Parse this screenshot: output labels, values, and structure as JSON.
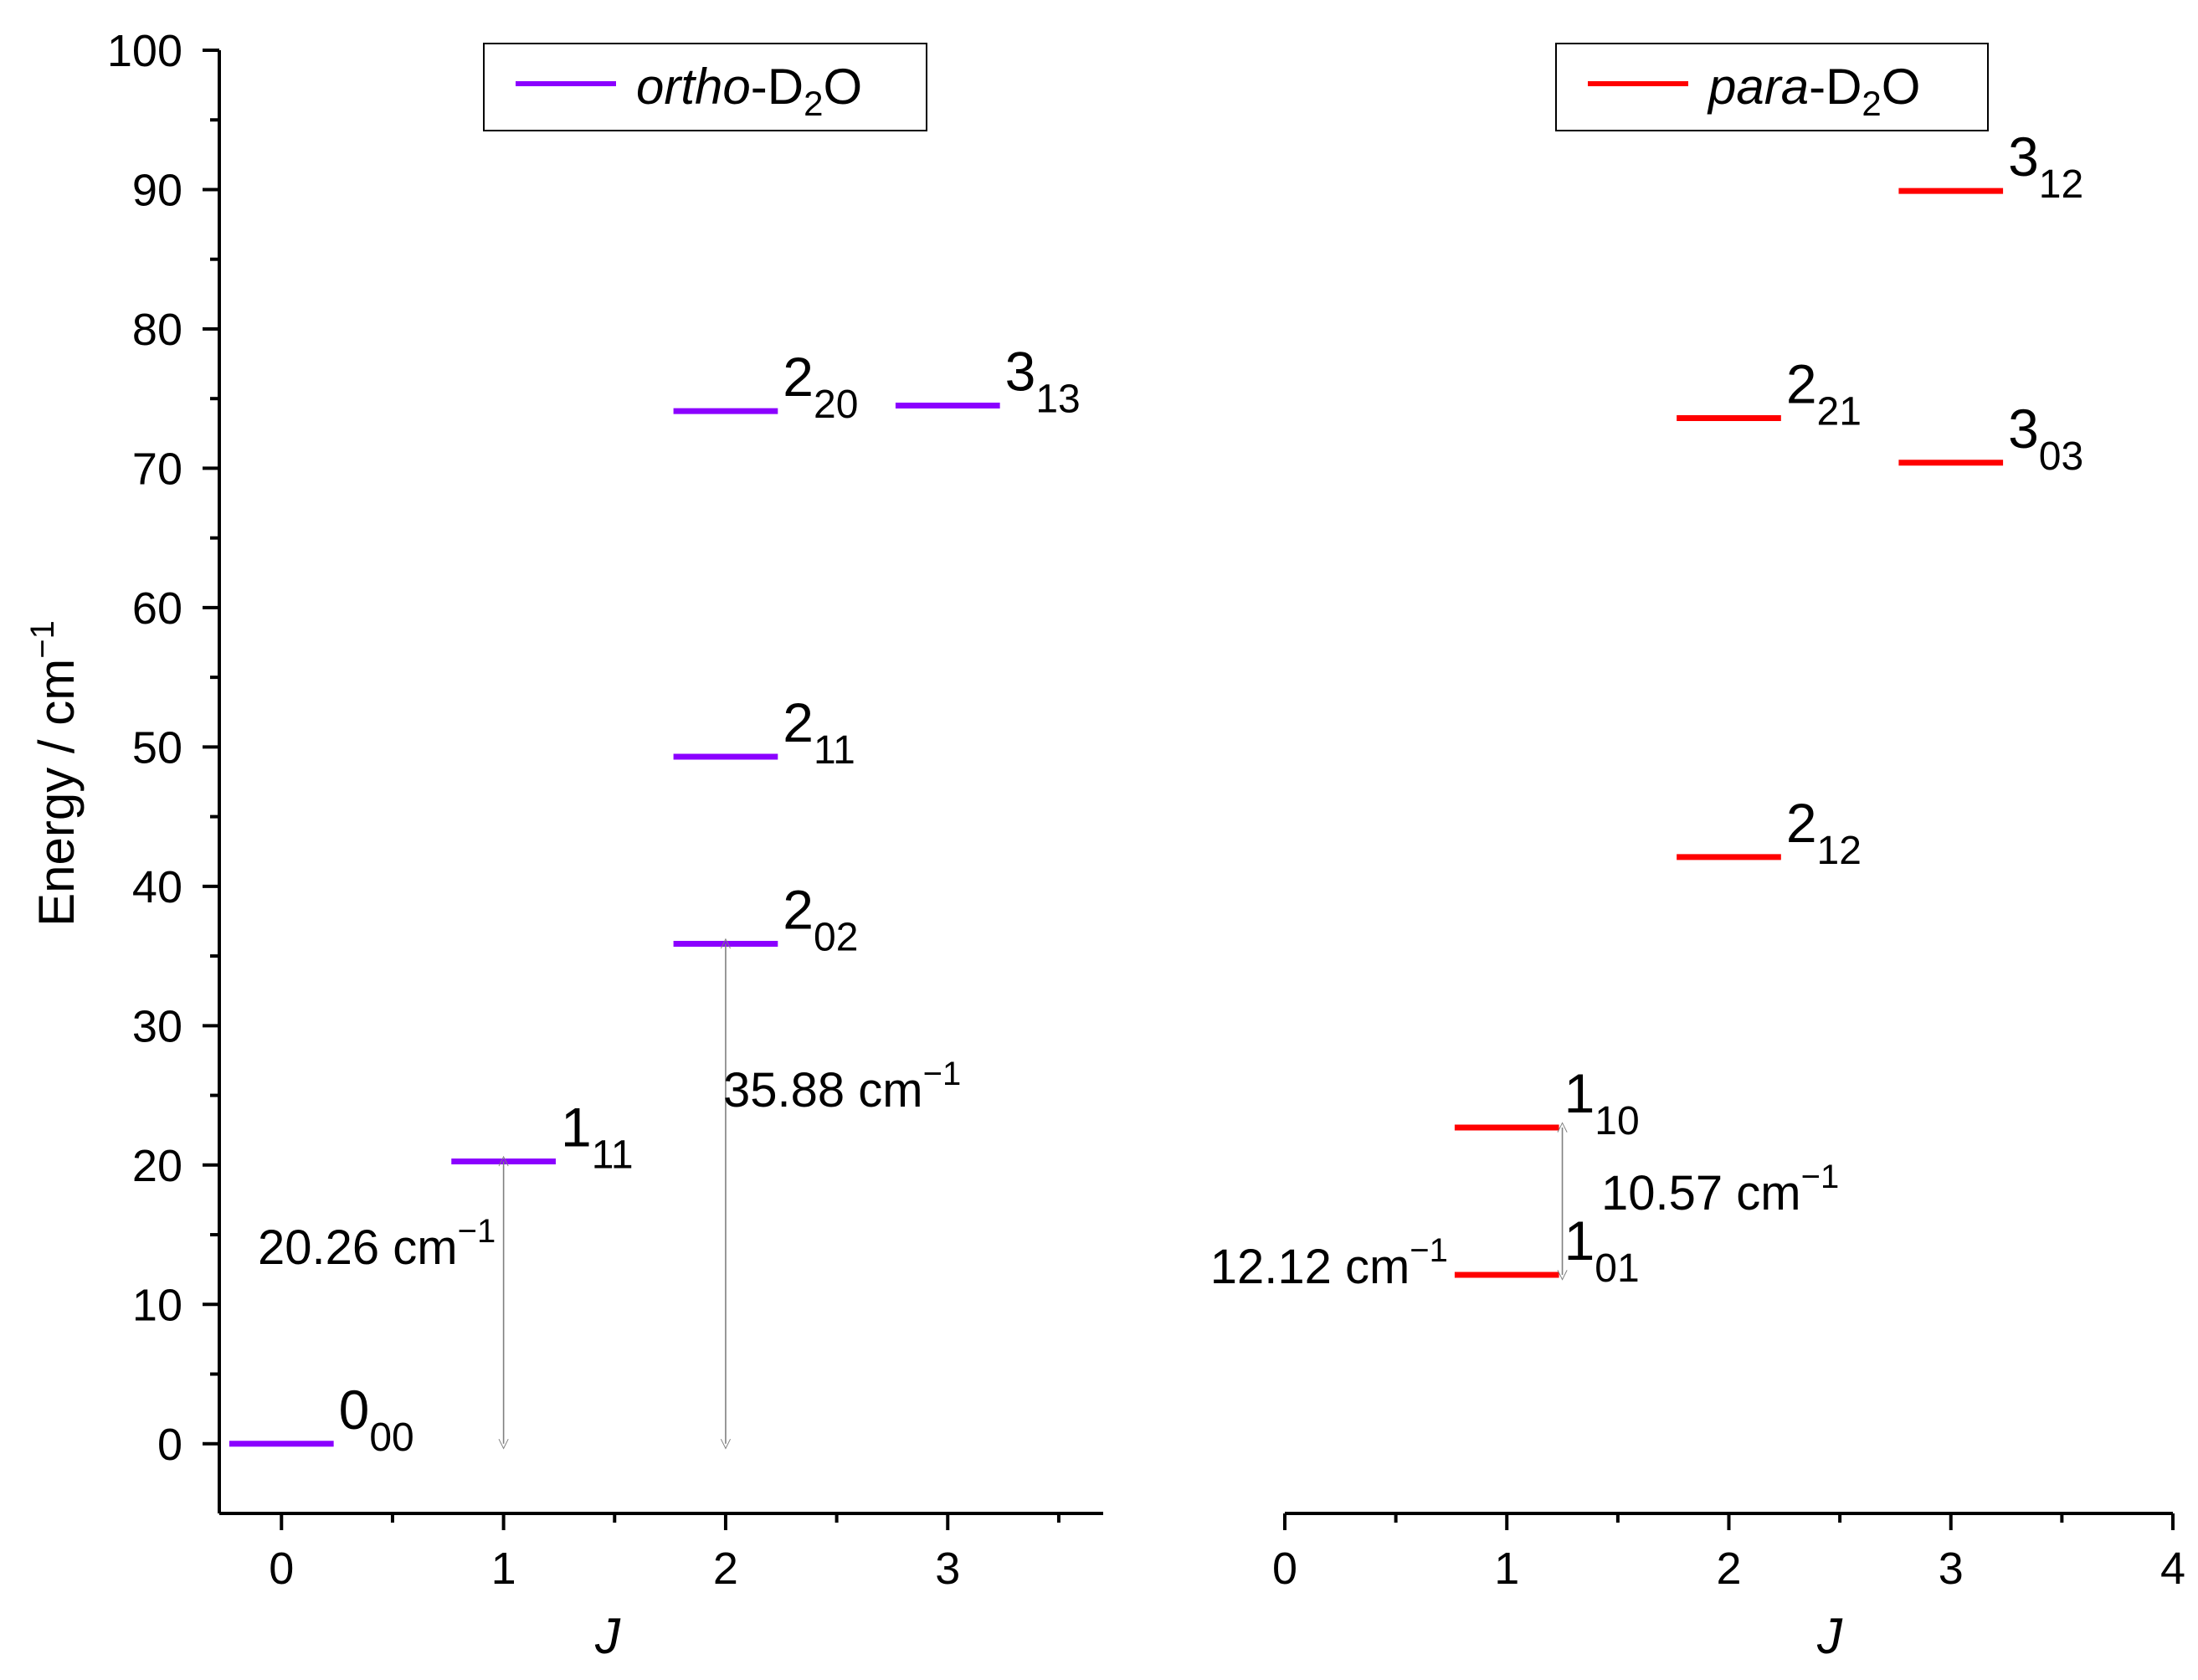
{
  "chart_data": {
    "type": "energy-level-diagram",
    "ylabel": "Energy / cm",
    "ylabel_sup": "−1",
    "ylim": [
      -5,
      100
    ],
    "yticks": [
      "0",
      "10",
      "20",
      "30",
      "40",
      "50",
      "60",
      "70",
      "80",
      "90",
      "100"
    ],
    "panels": [
      {
        "name": "ortho",
        "xlabel": "J",
        "xlim": [
          -0.28,
          3.7
        ],
        "xticks": [
          "0",
          "1",
          "2",
          "3"
        ],
        "legend": {
          "prefix": "ortho",
          "species": "-D",
          "sub": "2",
          "suffix": "O",
          "color": "#8B00FF"
        },
        "color": "#8B00FF",
        "levels": [
          {
            "j": 0,
            "energy": 0.0,
            "label": "0",
            "sub": "00"
          },
          {
            "j": 1,
            "energy": 20.26,
            "label": "1",
            "sub": "11"
          },
          {
            "j": 2,
            "energy": 35.88,
            "label": "2",
            "sub": "02"
          },
          {
            "j": 2,
            "energy": 49.3,
            "label": "2",
            "sub": "11"
          },
          {
            "j": 2,
            "energy": 74.1,
            "label": "2",
            "sub": "20"
          },
          {
            "j": 3,
            "energy": 74.5,
            "label": "3",
            "sub": "13"
          }
        ],
        "arrows": [
          {
            "x": 1,
            "from": 0,
            "to": 20.26,
            "value": "20.26 cm",
            "sup": "−1"
          },
          {
            "x": 2,
            "from": 0,
            "to": 35.88,
            "value": "35.88 cm",
            "sup": "−1"
          }
        ]
      },
      {
        "name": "para",
        "xlabel": "J",
        "xlim": [
          0,
          4
        ],
        "xticks": [
          "0",
          "1",
          "2",
          "3",
          "4"
        ],
        "legend": {
          "prefix": "para",
          "species": "-D",
          "sub": "2",
          "suffix": "O",
          "color": "#FF0000"
        },
        "color": "#FF0000",
        "levels": [
          {
            "j": 1,
            "energy": 12.12,
            "label": "1",
            "sub": "01"
          },
          {
            "j": 1,
            "energy": 22.69,
            "label": "1",
            "sub": "10"
          },
          {
            "j": 2,
            "energy": 42.1,
            "label": "2",
            "sub": "12"
          },
          {
            "j": 2,
            "energy": 73.6,
            "label": "2",
            "sub": "21"
          },
          {
            "j": 3,
            "energy": 70.4,
            "label": "3",
            "sub": "03"
          },
          {
            "j": 3,
            "energy": 89.9,
            "label": "3",
            "sub": "12"
          }
        ],
        "arrows": [
          {
            "x": 1.25,
            "from": 12.12,
            "to": 22.69,
            "value": "10.57 cm",
            "sup": "−1"
          }
        ],
        "extra_labels": [
          {
            "text": "12.12 cm",
            "sup": "−1",
            "anchor_level": 0
          }
        ]
      }
    ]
  }
}
